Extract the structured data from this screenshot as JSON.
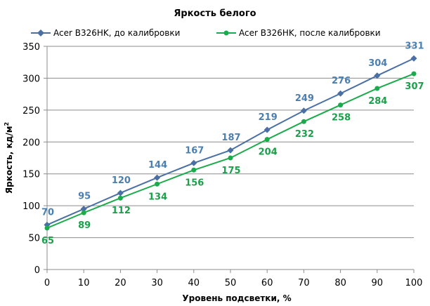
{
  "chart_data": {
    "type": "line",
    "title": "Яркость белого",
    "xlabel": "Уровень подсветки, %",
    "ylabel": "Яркость, кд/м",
    "ylabel_sup": "2",
    "x": [
      0,
      10,
      20,
      30,
      40,
      50,
      60,
      70,
      80,
      90,
      100
    ],
    "xlim": [
      0,
      100
    ],
    "ylim": [
      0,
      350
    ],
    "yticks": [
      0,
      50,
      100,
      150,
      200,
      250,
      300,
      350
    ],
    "xticks": [
      0,
      10,
      20,
      30,
      40,
      50,
      60,
      70,
      80,
      90,
      100
    ],
    "grid": "horizontal",
    "legend_position": "top",
    "series": [
      {
        "name": "Acer B326HK,  до калибровки",
        "color": "#4a6fa5",
        "label_color": "#4a7fb0",
        "marker": "diamond",
        "label_position": "above",
        "values": [
          70,
          95,
          120,
          144,
          167,
          187,
          219,
          249,
          276,
          304,
          331
        ]
      },
      {
        "name": "Acer B326HK,  после калибровки",
        "color": "#1aab4b",
        "label_color": "#1aa04a",
        "marker": "circle",
        "label_position": "below",
        "values": [
          65,
          89,
          112,
          134,
          156,
          175,
          204,
          232,
          258,
          284,
          307
        ]
      }
    ]
  }
}
